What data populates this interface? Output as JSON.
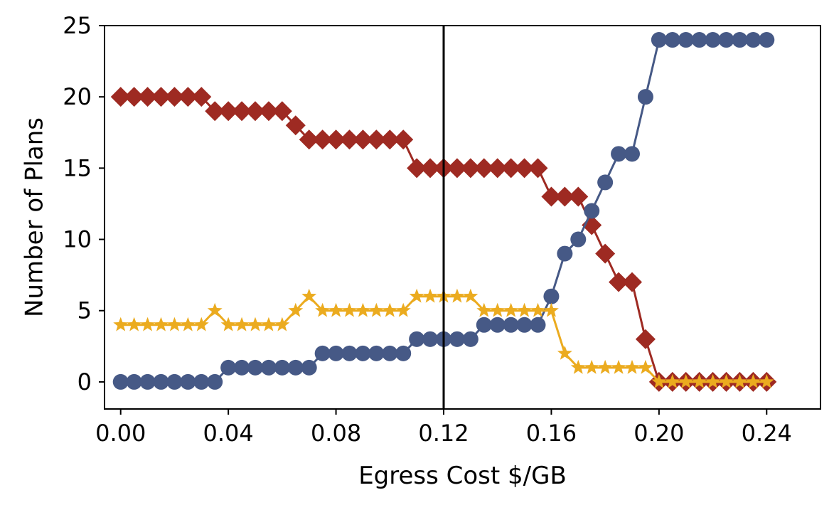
{
  "chart_data": {
    "type": "line",
    "title": "",
    "xlabel": "Egress Cost $/GB",
    "ylabel": "Number of Plans",
    "xlim": [
      -0.006,
      0.26
    ],
    "ylim": [
      -1.9,
      25
    ],
    "xticks": [
      "0.00",
      "0.04",
      "0.08",
      "0.12",
      "0.16",
      "0.20",
      "0.24"
    ],
    "xtick_values": [
      0.0,
      0.04,
      0.08,
      0.12,
      0.16,
      0.2,
      0.24
    ],
    "yticks": [
      "0",
      "5",
      "10",
      "15",
      "20",
      "25"
    ],
    "ytick_values": [
      0,
      5,
      10,
      15,
      20,
      25
    ],
    "grid": false,
    "legend": "none",
    "vline": {
      "x": 0.12,
      "color": "#000000"
    },
    "x": [
      0.0,
      0.005,
      0.01,
      0.015,
      0.02,
      0.025,
      0.03,
      0.035,
      0.04,
      0.045,
      0.05,
      0.055,
      0.06,
      0.065,
      0.07,
      0.075,
      0.08,
      0.085,
      0.09,
      0.095,
      0.1,
      0.105,
      0.11,
      0.115,
      0.12,
      0.125,
      0.13,
      0.135,
      0.14,
      0.145,
      0.15,
      0.155,
      0.16,
      0.165,
      0.17,
      0.175,
      0.18,
      0.185,
      0.19,
      0.195,
      0.2,
      0.205,
      0.21,
      0.215,
      0.22,
      0.225,
      0.23,
      0.235,
      0.24
    ],
    "series": [
      {
        "marker": "diamond",
        "color": "#9e2a22",
        "values": [
          20,
          20,
          20,
          20,
          20,
          20,
          20,
          19,
          19,
          19,
          19,
          19,
          19,
          18,
          17,
          17,
          17,
          17,
          17,
          17,
          17,
          17,
          15,
          15,
          15,
          15,
          15,
          15,
          15,
          15,
          15,
          15,
          13,
          13,
          13,
          11,
          9,
          7,
          7,
          3,
          0,
          0,
          0,
          0,
          0,
          0,
          0,
          0,
          0
        ]
      },
      {
        "marker": "circle",
        "color": "#465986",
        "values": [
          0,
          0,
          0,
          0,
          0,
          0,
          0,
          0,
          1,
          1,
          1,
          1,
          1,
          1,
          1,
          2,
          2,
          2,
          2,
          2,
          2,
          2,
          3,
          3,
          3,
          3,
          3,
          4,
          4,
          4,
          4,
          4,
          6,
          9,
          10,
          12,
          14,
          16,
          16,
          20,
          24,
          24,
          24,
          24,
          24,
          24,
          24,
          24,
          24
        ]
      },
      {
        "marker": "star",
        "color": "#ebab1f",
        "values": [
          4,
          4,
          4,
          4,
          4,
          4,
          4,
          5,
          4,
          4,
          4,
          4,
          4,
          5,
          6,
          5,
          5,
          5,
          5,
          5,
          5,
          5,
          6,
          6,
          6,
          6,
          6,
          5,
          5,
          5,
          5,
          5,
          5,
          2,
          1,
          1,
          1,
          1,
          1,
          1,
          0,
          0,
          0,
          0,
          0,
          0,
          0,
          0,
          0
        ]
      }
    ]
  }
}
